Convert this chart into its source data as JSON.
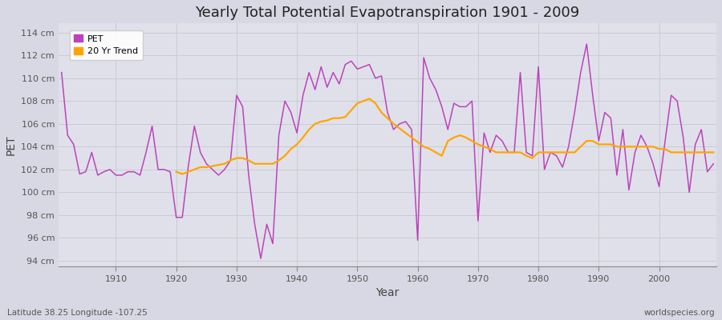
{
  "title": "Yearly Total Potential Evapotranspiration 1901 - 2009",
  "xlabel": "Year",
  "ylabel": "PET",
  "footnote_left": "Latitude 38.25 Longitude -107.25",
  "footnote_right": "worldspecies.org",
  "pet_color": "#BB44BB",
  "trend_color": "#FFA500",
  "bg_color": "#E0E0EA",
  "fig_color": "#D8D8E4",
  "years": [
    1901,
    1902,
    1903,
    1904,
    1905,
    1906,
    1907,
    1908,
    1909,
    1910,
    1911,
    1912,
    1913,
    1914,
    1915,
    1916,
    1917,
    1918,
    1919,
    1920,
    1921,
    1922,
    1923,
    1924,
    1925,
    1926,
    1927,
    1928,
    1929,
    1930,
    1931,
    1932,
    1933,
    1934,
    1935,
    1936,
    1937,
    1938,
    1939,
    1940,
    1941,
    1942,
    1943,
    1944,
    1945,
    1946,
    1947,
    1948,
    1949,
    1950,
    1951,
    1952,
    1953,
    1954,
    1955,
    1956,
    1957,
    1958,
    1959,
    1960,
    1961,
    1962,
    1963,
    1964,
    1965,
    1966,
    1967,
    1968,
    1969,
    1970,
    1971,
    1972,
    1973,
    1974,
    1975,
    1976,
    1977,
    1978,
    1979,
    1980,
    1981,
    1982,
    1983,
    1984,
    1985,
    1986,
    1987,
    1988,
    1989,
    1990,
    1991,
    1992,
    1993,
    1994,
    1995,
    1996,
    1997,
    1998,
    1999,
    2000,
    2001,
    2002,
    2003,
    2004,
    2005,
    2006,
    2007,
    2008,
    2009
  ],
  "pet_values": [
    110.5,
    105.0,
    104.2,
    101.6,
    101.8,
    103.5,
    101.5,
    101.8,
    102.0,
    101.5,
    101.5,
    101.8,
    101.8,
    101.5,
    103.5,
    105.8,
    102.0,
    102.0,
    101.8,
    97.8,
    97.8,
    102.3,
    105.8,
    103.5,
    102.5,
    102.0,
    101.5,
    102.0,
    102.8,
    108.5,
    107.5,
    101.5,
    97.2,
    94.2,
    97.2,
    95.5,
    105.0,
    108.0,
    107.0,
    105.2,
    108.5,
    110.5,
    109.0,
    111.0,
    109.2,
    110.5,
    109.5,
    111.2,
    111.5,
    110.8,
    111.0,
    111.2,
    110.0,
    110.2,
    107.0,
    105.5,
    106.0,
    106.2,
    105.5,
    95.8,
    111.8,
    110.0,
    109.0,
    107.5,
    105.5,
    107.8,
    107.5,
    107.5,
    108.0,
    97.5,
    105.2,
    103.5,
    105.0,
    104.5,
    103.5,
    103.5,
    110.5,
    103.5,
    103.2,
    111.0,
    102.0,
    103.5,
    103.2,
    102.2,
    104.0,
    107.0,
    110.5,
    113.0,
    108.5,
    104.5,
    107.0,
    106.5,
    101.5,
    105.5,
    100.2,
    103.5,
    105.0,
    104.0,
    102.5,
    100.5,
    104.5,
    108.5,
    108.0,
    104.8,
    100.0,
    104.2,
    105.5,
    101.8,
    102.5
  ],
  "trend_values": [
    null,
    null,
    null,
    null,
    null,
    null,
    null,
    null,
    null,
    null,
    null,
    null,
    null,
    null,
    null,
    null,
    null,
    null,
    null,
    101.8,
    101.6,
    101.8,
    102.0,
    102.2,
    102.2,
    102.3,
    102.4,
    102.5,
    102.8,
    103.0,
    103.0,
    102.8,
    102.5,
    102.5,
    102.5,
    102.5,
    102.8,
    103.2,
    103.8,
    104.2,
    104.8,
    105.5,
    106.0,
    106.2,
    106.3,
    106.5,
    106.5,
    106.6,
    107.2,
    107.8,
    108.0,
    108.2,
    107.8,
    107.0,
    106.5,
    106.0,
    105.6,
    105.2,
    104.8,
    104.4,
    104.0,
    103.8,
    103.5,
    103.2,
    104.5,
    104.8,
    105.0,
    104.8,
    104.5,
    104.2,
    104.0,
    103.8,
    103.5,
    103.5,
    103.5,
    103.5,
    103.5,
    103.2,
    103.0,
    103.5,
    103.5,
    103.5,
    103.5,
    103.5,
    103.5,
    103.5,
    104.0,
    104.5,
    104.5,
    104.2,
    104.2,
    104.2,
    104.0,
    104.0,
    104.0,
    104.0,
    104.0,
    104.0,
    104.0,
    103.8,
    103.8,
    103.5,
    103.5,
    103.5,
    103.5,
    103.5,
    103.5,
    103.5,
    103.5
  ],
  "ylim": [
    93.5,
    114.8
  ],
  "yticks": [
    94,
    96,
    98,
    100,
    102,
    104,
    106,
    108,
    110,
    112,
    114
  ],
  "xticks": [
    1910,
    1920,
    1930,
    1940,
    1950,
    1960,
    1970,
    1980,
    1990,
    2000
  ],
  "grid_color": "#C8C8D0",
  "linewidth_pet": 1.1,
  "linewidth_trend": 1.6
}
